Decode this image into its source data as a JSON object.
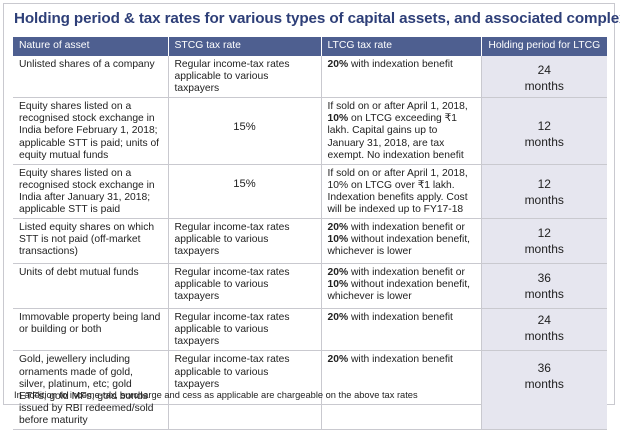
{
  "title": "Holding period & tax rates for various types of capital assets, and associated complexity",
  "columns": [
    "Nature of asset",
    "STCG tax rate",
    "LTCG tax rate",
    "Holding period for LTCG"
  ],
  "rows": [
    {
      "asset": "Unlisted shares of a company",
      "stcg": "Regular income-tax rates applicable to various taxpayers",
      "ltcg_bold": "20%",
      "ltcg_rest": " with indexation benefit",
      "holding_num": "24",
      "holding_unit": "months"
    },
    {
      "asset": "Equity shares listed on a recognised stock exchange in India before February 1, 2018; applicable STT is paid; units of equity mutual funds",
      "stcg": "15%",
      "ltcg_a": "If sold on or after April 1, 2018, ",
      "ltcg_bold": "10%",
      "ltcg_b": " on LTCG exceeding ₹1 lakh. Capital gains up to January 31, 2018, are tax exempt. No indexation benefit",
      "holding_num": "12",
      "holding_unit": "months"
    },
    {
      "asset": "Equity shares listed on a recognised stock exchange in India after January 31, 2018; applicable STT is paid",
      "stcg": "15%",
      "ltcg": "If sold on or after April 1, 2018, 10% on LTCG over ₹1 lakh. Indexation benefits apply. Cost will be indexed up to FY17-18",
      "holding_num": "12",
      "holding_unit": "months"
    },
    {
      "asset": "Listed equity shares on which STT is not paid (off-market transactions)",
      "stcg": "Regular income-tax rates applicable to various taxpayers",
      "ltcg_bold1": "20%",
      "ltcg_mid": " with indexation benefit or ",
      "ltcg_bold2": "10%",
      "ltcg_end": " without indexation benefit, whichever is lower",
      "holding_num": "12",
      "holding_unit": "months"
    },
    {
      "asset": "Units of debt mutual funds",
      "stcg": "Regular income-tax rates applicable to various taxpayers",
      "ltcg_bold1": "20%",
      "ltcg_mid": " with indexation benefit or ",
      "ltcg_bold2": "10%",
      "ltcg_end": " without indexation benefit, whichever is lower",
      "holding_num": "36",
      "holding_unit": "months"
    },
    {
      "asset": "Immovable property being land or building or both",
      "stcg": "Regular income-tax rates applicable to various taxpayers",
      "ltcg_bold": "20%",
      "ltcg_rest": " with indexation benefit",
      "holding_num": "24",
      "holding_unit": "months"
    },
    {
      "asset": "Gold, jewellery including ornaments made of gold, silver, platinum, etc; gold ETFs, gold MFs, gold bonds issued by RBI redeemed/sold before maturity",
      "stcg": "Regular income-tax rates applicable to various taxpayers",
      "ltcg_bold": "20%",
      "ltcg_rest": " with indexation benefit",
      "holding_num": "36",
      "holding_unit": "months"
    }
  ],
  "footnote": "In addition to income-tax, surcharge and cess as applicable are chargeable on the above tax rates",
  "colors": {
    "title": "#2e3f78",
    "header_bg": "#4e5f90",
    "holding_bg": "#e6e6ef"
  }
}
